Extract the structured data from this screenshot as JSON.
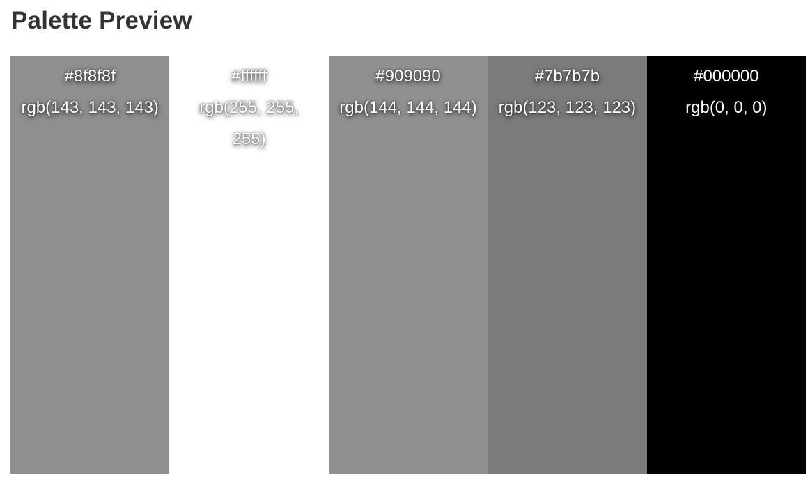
{
  "title": "Palette Preview",
  "swatches": [
    {
      "hex": "#8f8f8f",
      "rgb": "rgb(143, 143, 143)",
      "color": "#8f8f8f"
    },
    {
      "hex": "#ffffff",
      "rgb": "rgb(255, 255, 255)",
      "color": "#ffffff"
    },
    {
      "hex": "#909090",
      "rgb": "rgb(144, 144, 144)",
      "color": "#909090"
    },
    {
      "hex": "#7b7b7b",
      "rgb": "rgb(123, 123, 123)",
      "color": "#7b7b7b"
    },
    {
      "hex": "#000000",
      "rgb": "rgb(0, 0, 0)",
      "color": "#000000"
    }
  ]
}
